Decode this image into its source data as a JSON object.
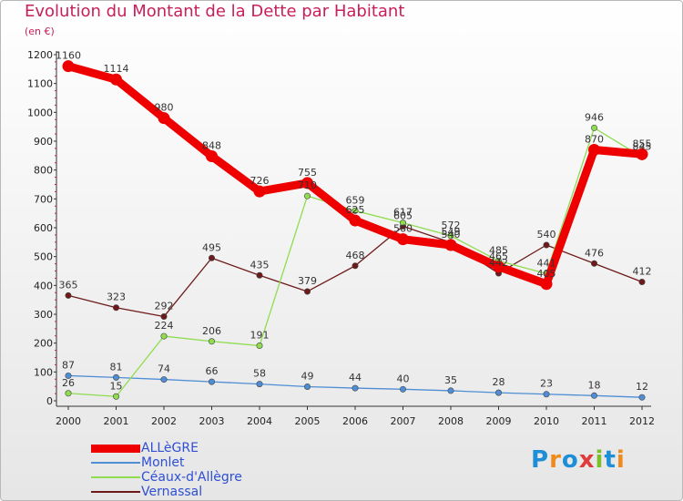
{
  "title": "Evolution du Montant de la Dette par Habitant",
  "subtitle": "(en €)",
  "logo": {
    "text": "Proxiti",
    "letters": [
      "P",
      "r",
      "o",
      "x",
      "i",
      "t",
      "i"
    ],
    "colors": [
      "#1e8fd6",
      "#f08a1c",
      "#1e8fd6",
      "#e03a3a",
      "#7bbf2a",
      "#1e8fd6",
      "#f08a1c"
    ]
  },
  "chart_data": {
    "type": "line",
    "x": [
      "2000",
      "2001",
      "2002",
      "2003",
      "2004",
      "2005",
      "2006",
      "2007",
      "2008",
      "2009",
      "2010",
      "2011",
      "2012"
    ],
    "ylim": [
      0,
      1200
    ],
    "yticks": [
      "0",
      "100",
      "200",
      "300",
      "400",
      "500",
      "600",
      "700",
      "800",
      "900",
      "1000",
      "1100",
      "1200"
    ],
    "grid": false,
    "legend": "bottom-left",
    "series": [
      {
        "name": "ALLèGRE",
        "color": "#ee0000",
        "values": [
          1160,
          1114,
          980,
          848,
          726,
          755,
          625,
          560,
          540,
          465,
          405,
          870,
          855
        ],
        "labels": [
          "1160",
          "1114",
          "980",
          "848",
          "726",
          "755",
          "625",
          "560",
          "540",
          "465",
          "405",
          "870",
          "855"
        ]
      },
      {
        "name": "Monlet",
        "color": "#4f8ed4",
        "values": [
          87,
          81,
          74,
          66,
          58,
          49,
          44,
          40,
          35,
          28,
          23,
          18,
          12
        ],
        "labels": [
          "87",
          "81",
          "74",
          "66",
          "58",
          "49",
          "44",
          "40",
          "35",
          "28",
          "23",
          "18",
          "12"
        ]
      },
      {
        "name": "Céaux-d'Allègre",
        "color": "#8fdc50",
        "values": [
          26,
          15,
          224,
          206,
          191,
          710,
          659,
          617,
          572,
          485,
          441,
          946,
          845
        ],
        "labels": [
          "26",
          "15",
          "224",
          "206",
          "191",
          "710",
          "659",
          "617",
          "572",
          "485",
          "441",
          "946",
          "845"
        ]
      },
      {
        "name": "Vernassal",
        "color": "#6e1a1a",
        "values": [
          365,
          323,
          292,
          495,
          435,
          379,
          468,
          605,
          549,
          442,
          540,
          476,
          412
        ],
        "labels": [
          "365",
          "323",
          "292",
          "495",
          "435",
          "379",
          "468",
          "605",
          "549",
          "442",
          "540",
          "476",
          "412"
        ]
      }
    ]
  }
}
